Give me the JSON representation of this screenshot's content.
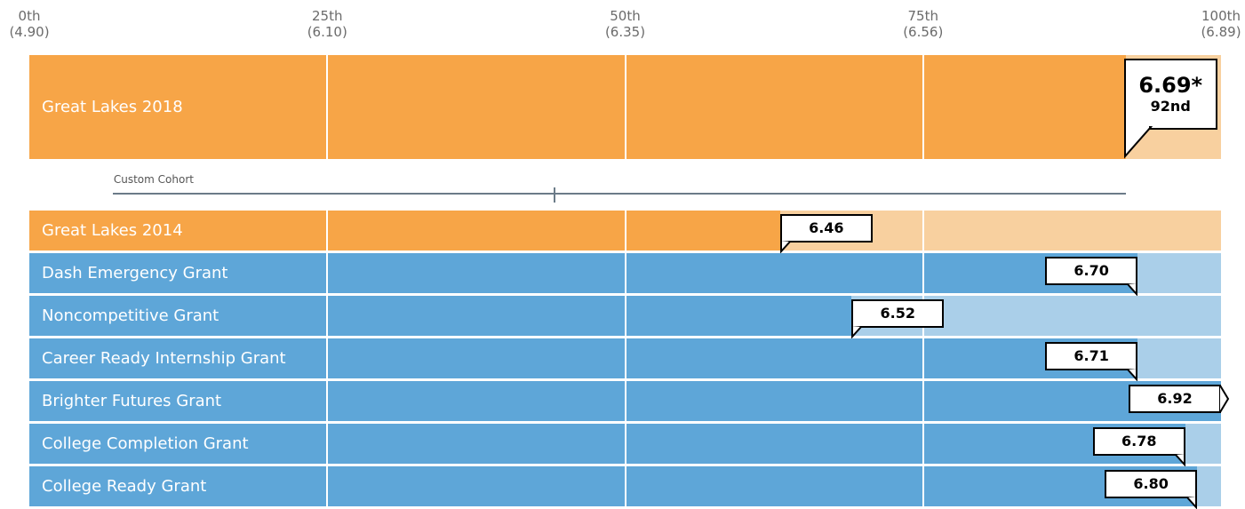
{
  "colors": {
    "orange_fill": "#f7a547",
    "orange_light": "#f8d09f",
    "blue_fill": "#5ea6d8",
    "blue_light": "#aacfe9"
  },
  "chart_data": {
    "type": "bar",
    "axis_ticks": [
      {
        "pct": 0,
        "label": "0th",
        "value": "(4.90)"
      },
      {
        "pct": 25,
        "label": "25th",
        "value": "(6.10)"
      },
      {
        "pct": 50,
        "label": "50th",
        "value": "(6.35)"
      },
      {
        "pct": 75,
        "label": "75th",
        "value": "(6.56)"
      },
      {
        "pct": 100,
        "label": "100th",
        "value": "(6.89)"
      }
    ],
    "main": {
      "name": "Great Lakes 2018",
      "value": "6.69*",
      "rank": "92nd",
      "percentile": 92
    },
    "cohort": {
      "label": "Custom Cohort",
      "start_percentile": 7,
      "end_percentile": 92,
      "mid_percentile": 44
    },
    "rows": [
      {
        "name": "Great Lakes 2014",
        "value": "6.46",
        "percentile": 63,
        "color": "orange",
        "pointer": "left"
      },
      {
        "name": "Dash Emergency Grant",
        "value": "6.70",
        "percentile": 93,
        "color": "blue",
        "pointer": "right"
      },
      {
        "name": "Noncompetitive Grant",
        "value": "6.52",
        "percentile": 69,
        "color": "blue",
        "pointer": "left"
      },
      {
        "name": "Career Ready Internship Grant",
        "value": "6.71",
        "percentile": 93,
        "color": "blue",
        "pointer": "right"
      },
      {
        "name": "Brighter Futures Grant",
        "value": "6.92",
        "percentile": 100,
        "color": "blue",
        "pointer": "arrow"
      },
      {
        "name": "College Completion Grant",
        "value": "6.78",
        "percentile": 97,
        "color": "blue",
        "pointer": "right"
      },
      {
        "name": "College Ready Grant",
        "value": "6.80",
        "percentile": 98,
        "color": "blue",
        "pointer": "right"
      }
    ]
  }
}
